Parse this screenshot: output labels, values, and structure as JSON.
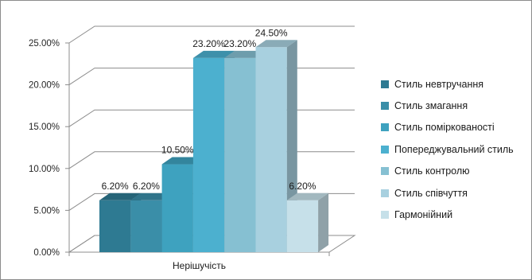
{
  "chart_data": {
    "type": "bar",
    "style": "3d-clustered",
    "categories": [
      "Нерішучість"
    ],
    "series": [
      {
        "name": "Стиль невтручання",
        "values": [
          6.2
        ],
        "label": "6.20%",
        "color": "#2e7a92"
      },
      {
        "name": "Стиль змагання",
        "values": [
          6.2
        ],
        "label": "6.20%",
        "color": "#3a8ea8"
      },
      {
        "name": "Стиль поміркованості",
        "values": [
          10.5
        ],
        "label": "10.50%",
        "color": "#3ea2bf"
      },
      {
        "name": "Попереджувальний стиль",
        "values": [
          23.2
        ],
        "label": "23.20%",
        "color": "#4cb0cf"
      },
      {
        "name": "Стиль контролю",
        "values": [
          23.2
        ],
        "label": "23.20%",
        "color": "#86c0d2"
      },
      {
        "name": "Стиль співчуття",
        "values": [
          24.5
        ],
        "label": "24.50%",
        "color": "#a8d0df"
      },
      {
        "name": "Гармонійний",
        "values": [
          6.2
        ],
        "label": "6.20%",
        "color": "#c6e0e9"
      }
    ],
    "y_ticks": [
      "0.00%",
      "5.00%",
      "10.00%",
      "15.00%",
      "20.00%",
      "25.00%"
    ],
    "ylim": [
      0,
      25
    ],
    "grid": true,
    "legend": "right"
  }
}
